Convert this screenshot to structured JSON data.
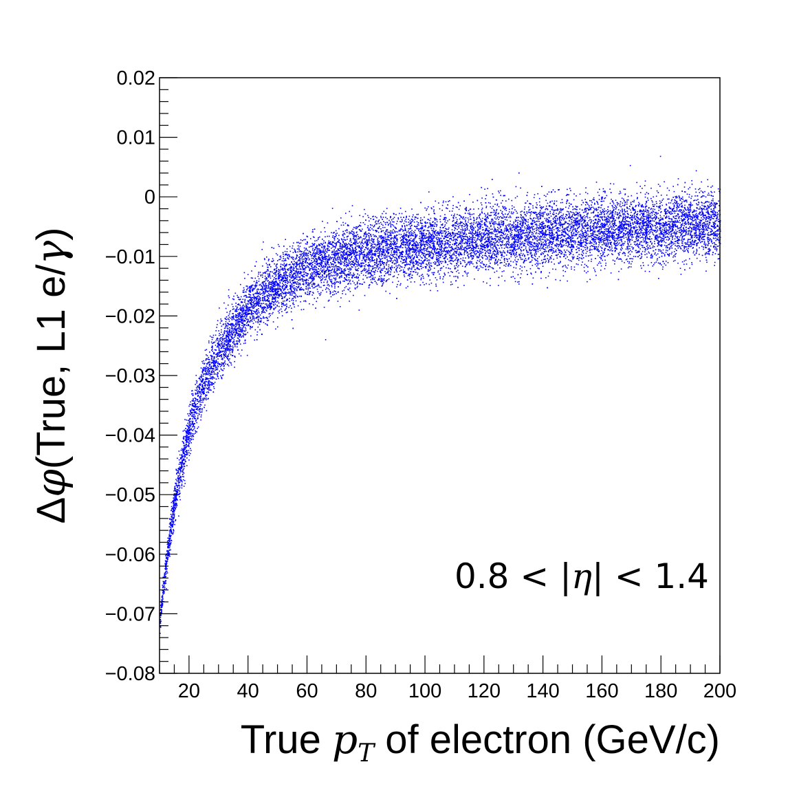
{
  "chart_data": {
    "type": "scatter",
    "title": "",
    "xlabel": {
      "prefix": "True ",
      "symbol": "p",
      "subscript": "T",
      "suffix": " of electron (GeV/c)"
    },
    "ylabel": {
      "prefix": "Δ",
      "symbol": "φ",
      "suffix": "(True, L1 e/",
      "symbol2": "γ",
      "close": ")"
    },
    "annotation": {
      "left": "0.8 < |",
      "symbol": "η",
      "right": "| < 1.4"
    },
    "xlim": [
      10,
      200
    ],
    "ylim": [
      -0.08,
      0.02
    ],
    "xticks": [
      20,
      40,
      60,
      80,
      100,
      120,
      140,
      160,
      180,
      200
    ],
    "xtick_labels": [
      "20",
      "40",
      "60",
      "80",
      "100",
      "120",
      "140",
      "160",
      "180",
      "200"
    ],
    "yticks": [
      -0.08,
      -0.07,
      -0.06,
      -0.05,
      -0.04,
      -0.03,
      -0.02,
      -0.01,
      0,
      0.01,
      0.02
    ],
    "ytick_labels": [
      "−0.08",
      "−0.07",
      "−0.06",
      "−0.05",
      "−0.04",
      "−0.03",
      "−0.02",
      "−0.01",
      "0",
      "0.01",
      "0.02"
    ],
    "grid": false,
    "marker_color": "#0000ff",
    "band": {
      "description_of_trend": "centre curve of the point cloud",
      "x": [
        10,
        12,
        15,
        20,
        25,
        30,
        40,
        50,
        60,
        70,
        80,
        100,
        120,
        140,
        160,
        180,
        200
      ],
      "center": [
        -0.071,
        -0.062,
        -0.051,
        -0.0385,
        -0.031,
        -0.026,
        -0.0185,
        -0.0145,
        -0.012,
        -0.0105,
        -0.0095,
        -0.008,
        -0.007,
        -0.006,
        -0.0055,
        -0.005,
        -0.0045
      ],
      "spread": [
        0.0012,
        0.0016,
        0.0022,
        0.0027,
        0.003,
        0.0032,
        0.0033,
        0.0034,
        0.0035,
        0.0036,
        0.0036,
        0.0037,
        0.0037,
        0.0037,
        0.0037,
        0.0037,
        0.0037
      ]
    }
  }
}
